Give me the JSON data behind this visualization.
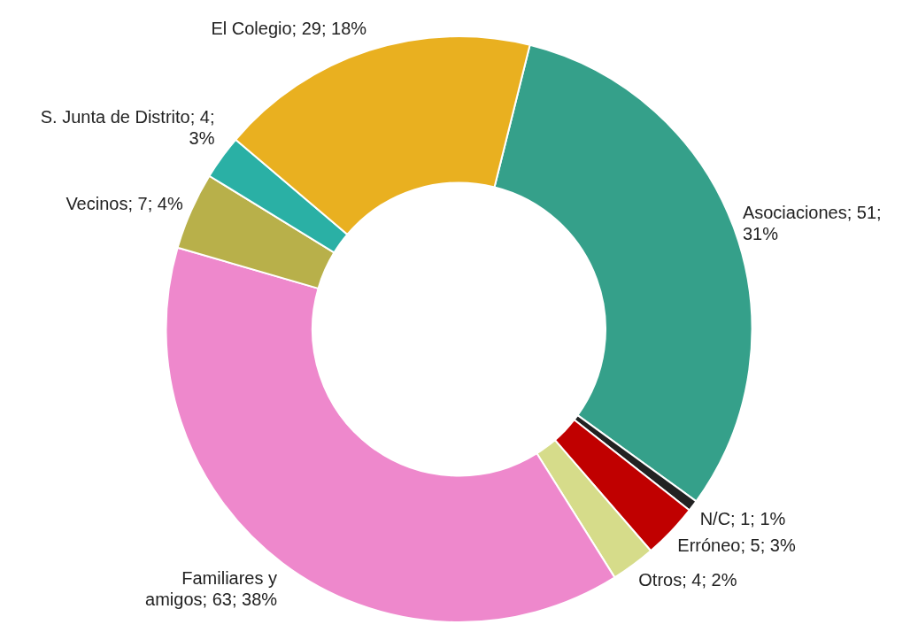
{
  "chart_data": {
    "type": "donut",
    "categories": [
      "Asociaciones",
      "N/C",
      "Erróneo",
      "Otros",
      "Familiares y amigos",
      "Vecinos",
      "S. Junta de Distrito",
      "El Colegio"
    ],
    "values": [
      51,
      1,
      5,
      4,
      63,
      7,
      4,
      29
    ],
    "value_labels": [
      "51; 31%",
      "1; 1%",
      "5; 3%",
      "4; 2%",
      "63; 38%",
      "7; 4%",
      "4; 3%",
      "29; 18%"
    ],
    "colors": [
      "#35a08a",
      "#222222",
      "#c00000",
      "#d6dc8a",
      "#ee88cc",
      "#b8b04a",
      "#2ab0a5",
      "#e9b020"
    ],
    "legend": false
  }
}
